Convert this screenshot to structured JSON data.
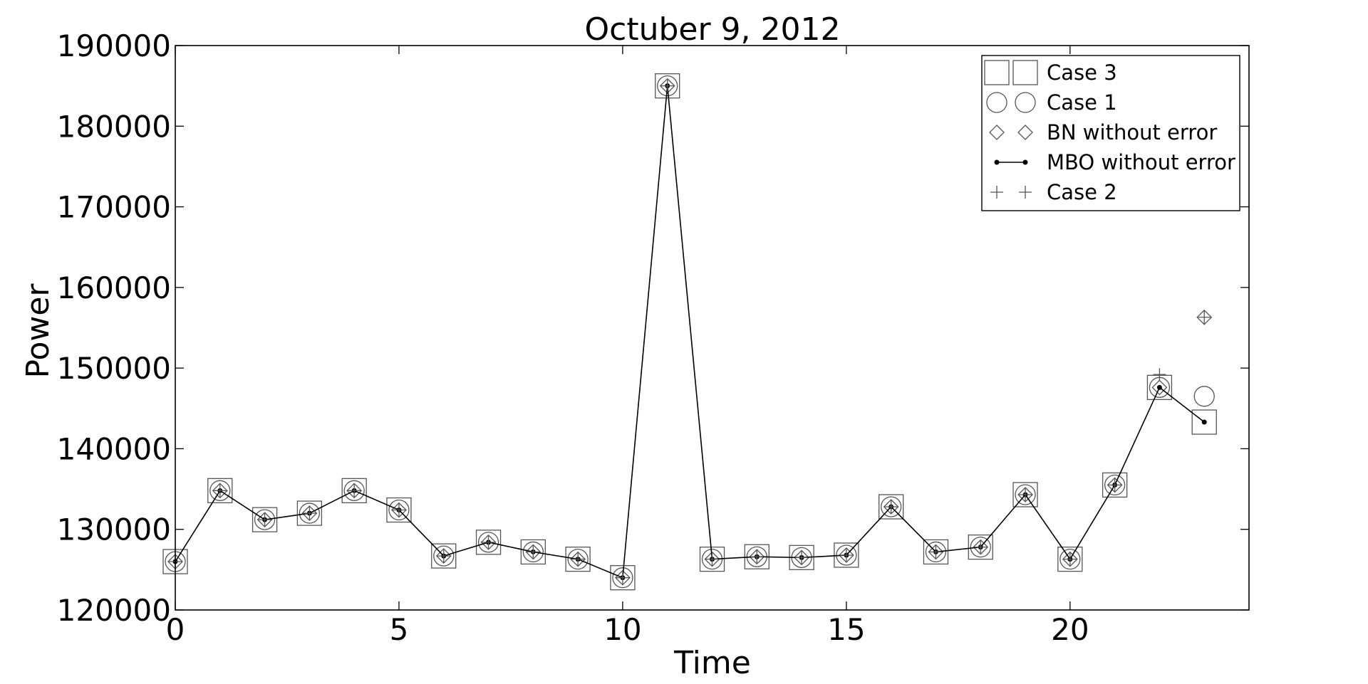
{
  "chart_data": {
    "type": "line",
    "title": "Octuber 9, 2012",
    "xlabel": "Time",
    "ylabel": "Power",
    "xlim": [
      0,
      24
    ],
    "ylim": [
      120000,
      190000
    ],
    "xticks": [
      0,
      5,
      10,
      15,
      20
    ],
    "yticks": [
      120000,
      130000,
      140000,
      150000,
      160000,
      170000,
      180000,
      190000
    ],
    "x": [
      0,
      1,
      2,
      3,
      4,
      5,
      6,
      7,
      8,
      9,
      10,
      11,
      12,
      13,
      14,
      15,
      16,
      17,
      18,
      19,
      20,
      21,
      22,
      23
    ],
    "series": [
      {
        "name": "Case 3",
        "marker": "square",
        "values": [
          126000,
          134800,
          131200,
          132000,
          134800,
          132400,
          126700,
          128400,
          127200,
          126300,
          124000,
          185000,
          126300,
          126600,
          126500,
          126800,
          132800,
          127200,
          127800,
          134300,
          126300,
          135500,
          147600,
          143300
        ]
      },
      {
        "name": "Case 1",
        "marker": "circle",
        "values": [
          126000,
          134800,
          131200,
          132000,
          134800,
          132400,
          126700,
          128400,
          127200,
          126300,
          124000,
          185000,
          126300,
          126600,
          126500,
          126800,
          132800,
          127200,
          127800,
          134300,
          126300,
          135500,
          147600,
          146500
        ]
      },
      {
        "name": "BN without error",
        "marker": "diamond",
        "values": [
          126000,
          134800,
          131200,
          132000,
          134800,
          132400,
          126700,
          128400,
          127200,
          126300,
          124000,
          185000,
          126300,
          126600,
          126500,
          126800,
          132800,
          127200,
          127800,
          134300,
          126300,
          135500,
          147600,
          156300
        ]
      },
      {
        "name": "MBO without error",
        "marker": "dot-line",
        "values": [
          126000,
          134800,
          131200,
          132000,
          134800,
          132400,
          126700,
          128400,
          127200,
          126300,
          124000,
          185000,
          126300,
          126600,
          126500,
          126800,
          132800,
          127200,
          127800,
          134300,
          126300,
          135500,
          147600,
          143300
        ]
      },
      {
        "name": "Case 2",
        "marker": "plus",
        "values": [
          126000,
          134800,
          131200,
          132000,
          134800,
          132400,
          126700,
          128400,
          127200,
          126300,
          124000,
          185000,
          126300,
          126600,
          126500,
          126800,
          132800,
          127200,
          127800,
          134300,
          126300,
          135500,
          149200,
          156300
        ]
      }
    ],
    "legend_position": "top-right",
    "grid": false,
    "colors": {
      "line": "#000000",
      "marker": "#555555"
    }
  }
}
